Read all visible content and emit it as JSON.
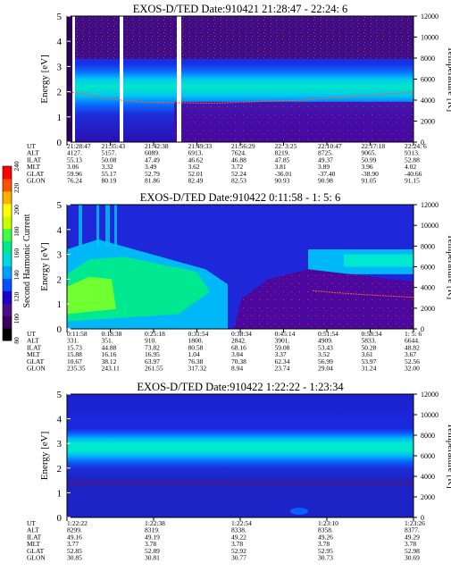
{
  "chart_data": [
    {
      "type": "heatmap",
      "title": "EXOS-D/TED   Date:910421  21:28:47 - 22:24: 6",
      "ylabel_left": "Energy [eV]",
      "ylabel_right": "Temperature [K]",
      "ylim": [
        0,
        5
      ],
      "y2lim": [
        0,
        12000
      ],
      "yticks": [
        "0",
        "1",
        "2",
        "3",
        "4",
        "5"
      ],
      "y2ticks": [
        "0",
        "2000",
        "4000",
        "6000",
        "8000",
        "10000",
        "12000"
      ],
      "orbit_rows": [
        "UT",
        "ALT",
        "ILAT",
        "MLT",
        "GLAT",
        "GLON"
      ],
      "orbit_columns": [
        [
          "21:28:47",
          "4127.",
          "55.13",
          "3.06",
          "59.96",
          "76.24"
        ],
        [
          "21:35:43",
          "5157.",
          "50.08",
          "3.32",
          "55.17",
          "80.19"
        ],
        [
          "21:42:38",
          "6089.",
          "47.49",
          "3.49",
          "52.79",
          "81.86"
        ],
        [
          "21:49:33",
          "6913.",
          "46.62",
          "3.62",
          "52.01",
          "82.49"
        ],
        [
          "21:56:29",
          "7624.",
          "46.88",
          "3.72",
          "52.24",
          "82.53"
        ],
        [
          "22: 3:25",
          "8219.",
          "47.85",
          "3.81",
          "-36.01",
          "90.93"
        ],
        [
          "22:10:47",
          "8725.",
          "49.37",
          "3.89",
          "-37.40",
          "90.98"
        ],
        [
          "22:17:18",
          "9065.",
          "50.99",
          "3.96",
          "-38.90",
          "91.05"
        ],
        [
          "22:24: 6",
          "9313.",
          "52.88",
          "4.02",
          "-40.66",
          "91.15"
        ]
      ],
      "data_gaps_ut": [
        [
          "21:30:10",
          "21:31:10"
        ],
        [
          "21:36:40",
          "21:37:40"
        ],
        [
          "21:47:50",
          "21:49:00"
        ]
      ],
      "temperature_trace_K": [
        4800,
        4500,
        4050,
        3800,
        3750,
        3700,
        3900,
        4000,
        4300,
        4500,
        4800
      ]
    },
    {
      "type": "heatmap",
      "title": "EXOS-D/TED   Date:910422  0:11:58 - 1: 5: 6",
      "ylabel_left": "Energy [eV]",
      "ylabel_right": "Temperature [K]",
      "ylim": [
        0,
        5
      ],
      "y2lim": [
        0,
        12000
      ],
      "yticks": [
        "0",
        "1",
        "2",
        "3",
        "4",
        "5"
      ],
      "y2ticks": [
        "0",
        "2000",
        "4000",
        "6000",
        "8000",
        "10000",
        "12000"
      ],
      "orbit_rows": [
        "UT",
        "ALT",
        "ILAT",
        "MLT",
        "GLAT",
        "GLON"
      ],
      "orbit_columns": [
        [
          "0:11:58",
          "331.",
          "15.73",
          "15.88",
          "10.67",
          "235.35"
        ],
        [
          "0:18:38",
          "351.",
          "44.88",
          "16.16",
          "38.12",
          "243.11"
        ],
        [
          "0:25:18",
          "910.",
          "73.82",
          "16.95",
          "63.97",
          "261.55"
        ],
        [
          "0:31:54",
          "1800.",
          "80.58",
          "1.04",
          "76.38",
          "317.32"
        ],
        [
          "0:38:34",
          "2842.",
          "68.16",
          "3.04",
          "70.38",
          "8.94"
        ],
        [
          "0:45:14",
          "3901.",
          "59.08",
          "3.37",
          "62.34",
          "23.74"
        ],
        [
          "0:51:54",
          "4909.",
          "53.43",
          "3.52",
          "56.99",
          "29.04"
        ],
        [
          "0:58:34",
          "5833.",
          "50.28",
          "3.61",
          "53.97",
          "31.24"
        ],
        [
          "1: 5: 6",
          "6644.",
          "48.82",
          "3.67",
          "52.56",
          "32.00"
        ]
      ],
      "temperature_trace_K": [
        3700,
        3500,
        3350,
        3200,
        3050
      ]
    },
    {
      "type": "heatmap",
      "title": "EXOS-D/TED   Date:910422  1:22:22 - 1:23:34",
      "ylabel_left": "Energy [eV]",
      "ylabel_right": "Temperature [K]",
      "ylim": [
        0,
        5
      ],
      "y2lim": [
        0,
        12000
      ],
      "yticks": [
        "0",
        "1",
        "2",
        "3",
        "4",
        "5"
      ],
      "y2ticks": [
        "0",
        "2000",
        "4000",
        "6000",
        "8000",
        "10000",
        "12000"
      ],
      "orbit_rows": [
        "UT",
        "ALT",
        "ILAT",
        "MLT",
        "GLAT",
        "GLON"
      ],
      "orbit_columns": [
        [
          "1:22:22",
          "8299.",
          "49.16",
          "3.77",
          "52.85",
          "30.85"
        ],
        [
          "1:22:38",
          "8319.",
          "49.19",
          "3.78",
          "52.89",
          "30.81"
        ],
        [
          "1:22:54",
          "8338.",
          "49.22",
          "3.78",
          "52.92",
          "30.77"
        ],
        [
          "1:23:10",
          "8358.",
          "49.26",
          "3.78",
          "52.95",
          "30.73"
        ],
        [
          "1:23:26",
          "8377.",
          "49.29",
          "3.78",
          "52.98",
          "30.69"
        ]
      ]
    }
  ],
  "colorbar": {
    "label": "Second Harmonic Current",
    "ticks": [
      "80",
      "100",
      "120",
      "140",
      "160",
      "180",
      "200",
      "220",
      "240"
    ],
    "colors": [
      "#000000",
      "#3a005e",
      "#4d0b8f",
      "#1a00c8",
      "#0050ff",
      "#00a0ff",
      "#00d8e0",
      "#00e890",
      "#40ff40",
      "#c8ff00",
      "#ffff00",
      "#ffb000",
      "#ff5000",
      "#ff0000"
    ]
  }
}
